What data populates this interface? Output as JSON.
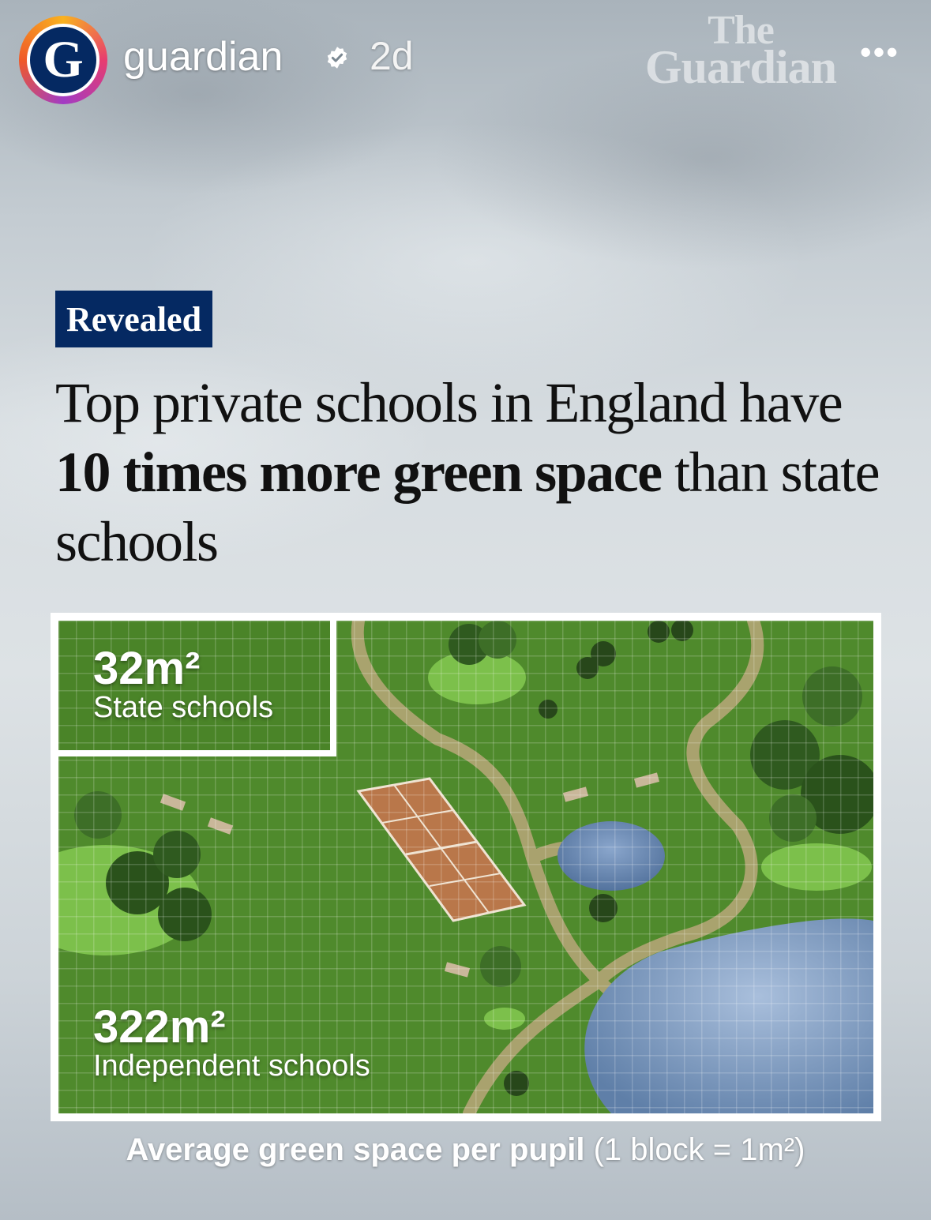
{
  "header": {
    "username": "guardian",
    "time": "2d",
    "avatar_letter": "G",
    "masthead_line1": "The",
    "masthead_line2": "Guardian",
    "more": "•••"
  },
  "article": {
    "kicker": "Revealed",
    "headline_part1": "Top private schools in England have ",
    "headline_bold1": "10 times more green space",
    "headline_part2": " than state schools"
  },
  "graphic": {
    "state_value": "32m²",
    "state_label": "State schools",
    "independent_value": "322m²",
    "independent_label": "Independent schools",
    "caption_bold": "Average green space per pupil",
    "caption_rest": " (1 block = 1m²)",
    "colors": {
      "grass": "#4f8a2c",
      "path": "#c8b58a",
      "water": "#6f8fb8",
      "court": "#b9774a",
      "navy": "#052962"
    }
  }
}
